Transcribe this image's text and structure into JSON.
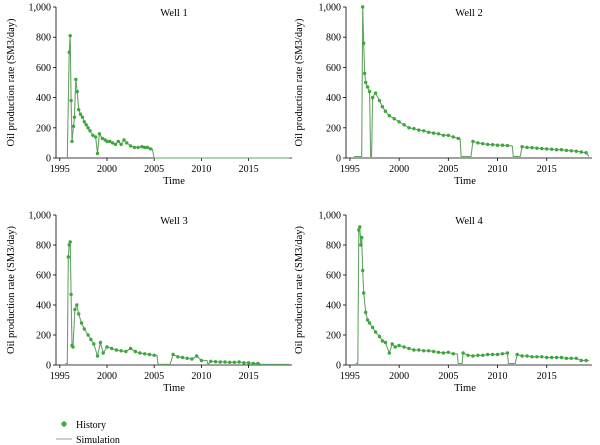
{
  "figure": {
    "legend": {
      "history_label": "History",
      "simulation_label": "Simulation"
    },
    "colors": {
      "history": "#3aa83a",
      "simulation": "#9aa09a",
      "axis": "#000000"
    }
  },
  "chart_data": [
    {
      "type": "scatter",
      "title": "Well 1",
      "xlabel": "Time",
      "ylabel": "Oil production rate (SM3/day)",
      "xlim": [
        1994.6,
        2019.6
      ],
      "ylim": [
        0,
        1000
      ],
      "xticks": [
        1995,
        2000,
        2005,
        2010,
        2015
      ],
      "yticks": [
        0,
        200,
        400,
        600,
        800,
        1000
      ],
      "ytick_labels": [
        "0",
        "200",
        "400",
        "600",
        "800",
        "1,000"
      ],
      "series": [
        {
          "name": "History",
          "x": [
            1996.0,
            1996.1,
            1996.2,
            1996.3,
            1996.45,
            1996.55,
            1996.7,
            1996.85,
            1997.0,
            1997.2,
            1997.4,
            1997.6,
            1997.8,
            1998.0,
            1998.2,
            1998.5,
            1998.8,
            1999.0,
            1999.2,
            1999.5,
            1999.8,
            2000.0,
            2000.3,
            2000.6,
            2000.9,
            2001.2,
            2001.5,
            2001.8,
            2002.1,
            2002.5,
            2002.9,
            2003.3,
            2003.7,
            2004.0,
            2004.3,
            2004.6
          ],
          "y": [
            700,
            810,
            380,
            110,
            210,
            270,
            520,
            440,
            320,
            290,
            270,
            240,
            220,
            200,
            180,
            150,
            140,
            30,
            160,
            130,
            120,
            110,
            110,
            100,
            90,
            110,
            90,
            120,
            100,
            80,
            70,
            70,
            75,
            70,
            70,
            60
          ]
        },
        {
          "name": "Simulation",
          "x": [
            1995.8,
            1996.0,
            1996.1,
            1996.2,
            1996.3,
            1996.45,
            1996.55,
            1996.7,
            1996.85,
            1997.0,
            1997.2,
            1997.4,
            1997.6,
            1997.8,
            1998.0,
            1998.2,
            1998.5,
            1998.8,
            1999.0,
            1999.2,
            1999.5,
            1999.8,
            2000.0,
            2000.3,
            2000.6,
            2000.9,
            2001.2,
            2001.5,
            2001.8,
            2002.1,
            2002.5,
            2002.9,
            2003.3,
            2003.7,
            2004.0,
            2004.3,
            2004.6,
            2004.8,
            2005.0,
            2019.3
          ],
          "y": [
            0,
            700,
            810,
            380,
            110,
            210,
            270,
            520,
            440,
            320,
            290,
            270,
            240,
            220,
            200,
            180,
            150,
            140,
            30,
            160,
            130,
            120,
            110,
            110,
            100,
            90,
            110,
            90,
            120,
            100,
            80,
            70,
            70,
            75,
            70,
            70,
            60,
            60,
            0,
            0
          ]
        }
      ]
    },
    {
      "type": "scatter",
      "title": "Well 2",
      "xlabel": "Time",
      "ylabel": "Oil production rate (SM3/day)",
      "xlim": [
        1994.6,
        2019.6
      ],
      "ylim": [
        0,
        1000
      ],
      "xticks": [
        1995,
        2000,
        2005,
        2010,
        2015
      ],
      "yticks": [
        0,
        200,
        400,
        600,
        800,
        1000
      ],
      "ytick_labels": [
        "0",
        "200",
        "400",
        "600",
        "800",
        "1,000"
      ],
      "series": [
        {
          "name": "History",
          "x": [
            1996.3,
            1996.4,
            1996.5,
            1996.6,
            1996.8,
            1997.0,
            1997.3,
            1997.6,
            1998.0,
            1998.3,
            1998.6,
            1999.0,
            1999.5,
            2000.0,
            2000.5,
            2001.0,
            2001.5,
            2002.0,
            2002.5,
            2003.0,
            2003.5,
            2004.0,
            2004.5,
            2005.0,
            2005.5,
            2006.0,
            2007.5,
            2008.0,
            2008.5,
            2009.0,
            2009.5,
            2010.0,
            2010.5,
            2011.0,
            2012.5,
            2013.0,
            2013.5,
            2014.0,
            2014.5,
            2015.0,
            2015.5,
            2016.0,
            2016.5,
            2017.0,
            2017.5,
            2018.0,
            2018.5,
            2019.0
          ],
          "y": [
            1000,
            760,
            560,
            500,
            470,
            440,
            400,
            430,
            380,
            340,
            310,
            280,
            260,
            240,
            220,
            200,
            195,
            185,
            180,
            170,
            165,
            160,
            150,
            150,
            140,
            130,
            110,
            100,
            95,
            90,
            88,
            85,
            85,
            82,
            75,
            70,
            68,
            65,
            62,
            60,
            58,
            55,
            55,
            50,
            48,
            45,
            40,
            35
          ]
        },
        {
          "name": "Simulation",
          "x": [
            1995.4,
            1996.2,
            1996.3,
            1996.4,
            1996.5,
            1996.6,
            1996.8,
            1997.0,
            1997.1,
            1997.2,
            1997.3,
            1997.6,
            1998.0,
            1998.3,
            1998.6,
            1999.0,
            1999.5,
            2000.0,
            2000.5,
            2001.0,
            2001.5,
            2002.0,
            2002.5,
            2003.0,
            2003.5,
            2004.0,
            2004.5,
            2005.0,
            2005.5,
            2006.0,
            2006.2,
            2006.3,
            2007.3,
            2007.5,
            2008.0,
            2008.5,
            2009.0,
            2009.5,
            2010.0,
            2010.5,
            2011.0,
            2011.5,
            2011.6,
            2012.3,
            2012.5,
            2013.0,
            2013.5,
            2014.0,
            2014.5,
            2015.0,
            2015.5,
            2016.0,
            2016.5,
            2017.0,
            2017.5,
            2018.0,
            2018.5,
            2019.0,
            2019.3
          ],
          "y": [
            10,
            10,
            1000,
            760,
            560,
            500,
            470,
            440,
            10,
            10,
            400,
            430,
            380,
            340,
            310,
            280,
            260,
            240,
            220,
            200,
            195,
            185,
            180,
            170,
            165,
            160,
            150,
            150,
            140,
            130,
            130,
            10,
            10,
            110,
            100,
            95,
            90,
            88,
            85,
            85,
            82,
            80,
            10,
            10,
            75,
            70,
            68,
            65,
            62,
            60,
            58,
            55,
            55,
            50,
            48,
            45,
            40,
            35,
            10
          ]
        }
      ]
    },
    {
      "type": "scatter",
      "title": "Well 3",
      "xlabel": "Time",
      "ylabel": "Oil production rate (SM3/day)",
      "xlim": [
        1994.6,
        2019.6
      ],
      "ylim": [
        0,
        1000
      ],
      "xticks": [
        1995,
        2000,
        2005,
        2010,
        2015
      ],
      "yticks": [
        0,
        200,
        400,
        600,
        800,
        1000
      ],
      "ytick_labels": [
        "0",
        "200",
        "400",
        "600",
        "800",
        "1,000"
      ],
      "series": [
        {
          "name": "History",
          "x": [
            1995.9,
            1996.0,
            1996.1,
            1996.2,
            1996.3,
            1996.4,
            1996.6,
            1996.8,
            1997.0,
            1997.3,
            1997.6,
            1998.0,
            1998.3,
            1998.6,
            1999.0,
            1999.3,
            1999.6,
            2000.0,
            2000.5,
            2001.0,
            2001.5,
            2002.0,
            2002.5,
            2003.0,
            2003.5,
            2004.0,
            2004.5,
            2005.0,
            2007.0,
            2007.5,
            2008.0,
            2008.5,
            2009.0,
            2009.5,
            2010.0,
            2011.0,
            2011.5,
            2012.0,
            2012.5,
            2013.0,
            2013.5,
            2014.0,
            2014.5,
            2015.0,
            2015.5,
            2016.0
          ],
          "y": [
            720,
            800,
            820,
            470,
            130,
            120,
            370,
            400,
            340,
            280,
            240,
            200,
            170,
            140,
            60,
            150,
            80,
            120,
            110,
            100,
            95,
            90,
            110,
            90,
            80,
            75,
            70,
            65,
            70,
            55,
            50,
            45,
            40,
            60,
            30,
            25,
            22,
            20,
            20,
            18,
            18,
            20,
            15,
            15,
            10,
            10
          ]
        },
        {
          "name": "Simulation",
          "x": [
            1995.6,
            1995.8,
            1995.9,
            1996.0,
            1996.1,
            1996.2,
            1996.3,
            1996.4,
            1996.6,
            1996.8,
            1997.0,
            1997.3,
            1997.6,
            1998.0,
            1998.3,
            1998.6,
            1999.0,
            1999.3,
            1999.6,
            2000.0,
            2000.5,
            2001.0,
            2001.5,
            2002.0,
            2002.5,
            2003.0,
            2003.5,
            2004.0,
            2004.5,
            2005.0,
            2005.3,
            2005.4,
            2006.7,
            2007.0,
            2007.5,
            2008.0,
            2008.5,
            2009.0,
            2009.5,
            2010.0,
            2010.6,
            2010.7,
            2011.0,
            2011.5,
            2012.0,
            2012.5,
            2013.0,
            2013.5,
            2014.0,
            2014.5,
            2015.0,
            2015.5,
            2016.0,
            2016.3,
            2019.3
          ],
          "y": [
            10,
            10,
            720,
            800,
            820,
            470,
            130,
            120,
            370,
            400,
            340,
            280,
            240,
            200,
            170,
            140,
            60,
            150,
            80,
            120,
            110,
            100,
            95,
            90,
            110,
            90,
            80,
            75,
            70,
            65,
            65,
            5,
            5,
            70,
            55,
            50,
            45,
            40,
            60,
            30,
            30,
            5,
            25,
            22,
            20,
            20,
            18,
            18,
            20,
            15,
            15,
            10,
            10,
            5,
            5
          ]
        }
      ]
    },
    {
      "type": "scatter",
      "title": "Well 4",
      "xlabel": "Time",
      "ylabel": "Oil production rate (SM3/day)",
      "xlim": [
        1994.6,
        2019.6
      ],
      "ylim": [
        0,
        1000
      ],
      "xticks": [
        1995,
        2000,
        2005,
        2010,
        2015
      ],
      "yticks": [
        0,
        200,
        400,
        600,
        800,
        1000
      ],
      "ytick_labels": [
        "0",
        "200",
        "400",
        "600",
        "800",
        "1,000"
      ],
      "series": [
        {
          "name": "History",
          "x": [
            1995.9,
            1996.0,
            1996.1,
            1996.2,
            1996.3,
            1996.4,
            1996.6,
            1996.8,
            1997.0,
            1997.3,
            1997.6,
            1998.0,
            1998.3,
            1998.6,
            1999.0,
            1999.3,
            1999.6,
            2000.0,
            2000.5,
            2001.0,
            2001.5,
            2002.0,
            2002.5,
            2003.0,
            2003.5,
            2004.0,
            2004.5,
            2005.0,
            2005.5,
            2006.5,
            2007.0,
            2007.5,
            2008.0,
            2008.5,
            2009.0,
            2009.5,
            2010.0,
            2010.5,
            2011.0,
            2012.0,
            2012.5,
            2013.0,
            2013.5,
            2014.0,
            2014.5,
            2015.0,
            2015.5,
            2016.0,
            2016.5,
            2017.0,
            2017.5,
            2018.0,
            2018.5,
            2019.0
          ],
          "y": [
            900,
            920,
            800,
            850,
            630,
            480,
            350,
            300,
            280,
            250,
            220,
            190,
            160,
            150,
            80,
            140,
            120,
            130,
            120,
            110,
            100,
            100,
            95,
            95,
            90,
            85,
            80,
            85,
            75,
            80,
            65,
            60,
            65,
            65,
            70,
            70,
            70,
            75,
            80,
            70,
            60,
            60,
            55,
            55,
            55,
            50,
            50,
            50,
            50,
            45,
            45,
            45,
            30,
            30
          ]
        },
        {
          "name": "Simulation",
          "x": [
            1995.6,
            1995.8,
            1995.9,
            1996.0,
            1996.1,
            1996.2,
            1996.3,
            1996.4,
            1996.6,
            1996.8,
            1997.0,
            1997.3,
            1997.6,
            1998.0,
            1998.3,
            1998.6,
            1999.0,
            1999.3,
            1999.6,
            2000.0,
            2000.5,
            2001.0,
            2001.5,
            2002.0,
            2002.5,
            2003.0,
            2003.5,
            2004.0,
            2004.5,
            2005.0,
            2005.5,
            2005.9,
            2006.0,
            2006.4,
            2006.5,
            2007.0,
            2007.5,
            2008.0,
            2008.5,
            2009.0,
            2009.5,
            2010.0,
            2010.5,
            2011.0,
            2011.1,
            2011.8,
            2012.0,
            2012.5,
            2013.0,
            2013.5,
            2014.0,
            2014.5,
            2015.0,
            2015.5,
            2016.0,
            2016.5,
            2017.0,
            2017.5,
            2018.0,
            2018.5,
            2019.0,
            2019.3
          ],
          "y": [
            10,
            10,
            900,
            920,
            800,
            850,
            630,
            480,
            350,
            300,
            280,
            250,
            220,
            190,
            160,
            150,
            80,
            140,
            120,
            130,
            120,
            110,
            100,
            100,
            95,
            95,
            90,
            85,
            80,
            85,
            75,
            75,
            10,
            10,
            80,
            65,
            60,
            65,
            65,
            70,
            70,
            70,
            75,
            80,
            10,
            10,
            70,
            60,
            60,
            55,
            55,
            55,
            50,
            50,
            50,
            50,
            45,
            45,
            45,
            30,
            30,
            30
          ]
        }
      ]
    }
  ]
}
